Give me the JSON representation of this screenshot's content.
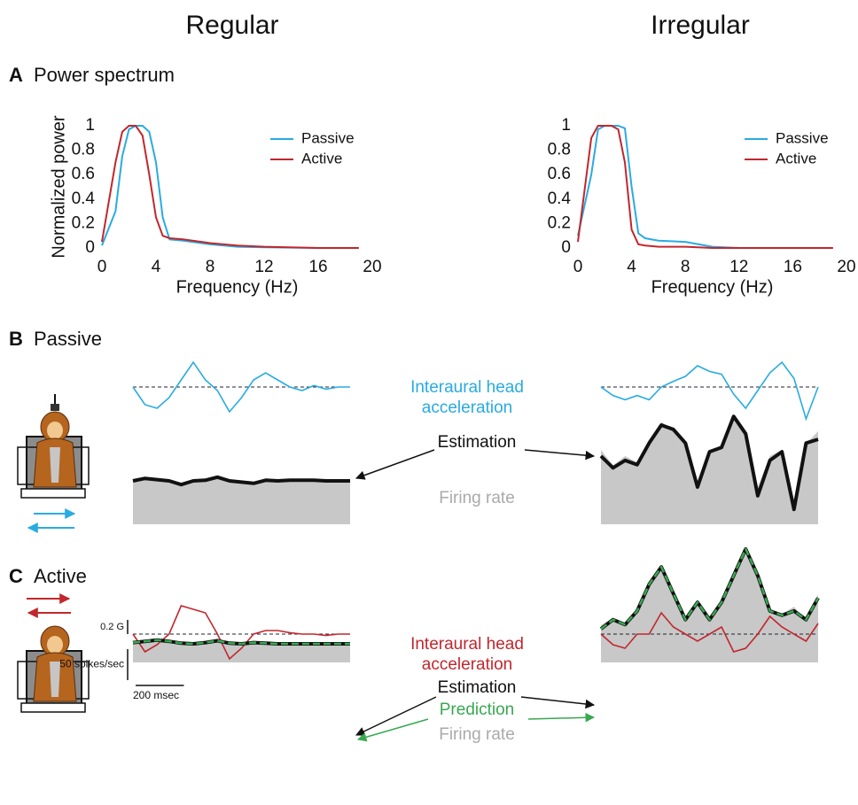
{
  "column_titles": [
    "Regular",
    "Irregular"
  ],
  "panels": [
    {
      "letter": "A",
      "title": "Power spectrum"
    },
    {
      "letter": "B",
      "title": "Passive"
    },
    {
      "letter": "C",
      "title": "Active"
    }
  ],
  "chart_data": [
    {
      "type": "line",
      "ylabel": "Normalized power",
      "xlabel": "Frequency (Hz)",
      "x": [
        0,
        1,
        1.5,
        2,
        2.5,
        3,
        3.5,
        4,
        4.5,
        5,
        6,
        8,
        10,
        12,
        16,
        19
      ],
      "series": [
        {
          "name": "Passive",
          "color": "#29abe2",
          "values": [
            0.02,
            0.3,
            0.75,
            0.97,
            1,
            1,
            0.95,
            0.7,
            0.25,
            0.07,
            0.06,
            0.03,
            0.01,
            0.005,
            0,
            0
          ]
        },
        {
          "name": "Active",
          "color": "#c1272d",
          "values": [
            0.05,
            0.7,
            0.95,
            1,
            1,
            0.92,
            0.6,
            0.25,
            0.1,
            0.08,
            0.07,
            0.04,
            0.02,
            0.01,
            0,
            0
          ]
        }
      ],
      "xlim": [
        0,
        20
      ],
      "ylim": [
        0,
        1
      ],
      "xticks": [
        0,
        4,
        8,
        12,
        16,
        20
      ],
      "yticks": [
        0,
        0.2,
        0.4,
        0.6,
        0.8,
        1
      ],
      "legend": "upper right"
    },
    {
      "type": "line",
      "xlabel": "Frequency (Hz)",
      "x": [
        0,
        1,
        1.5,
        2,
        2.5,
        3,
        3.5,
        4,
        4.5,
        5,
        6,
        8,
        10,
        12,
        16,
        19
      ],
      "series": [
        {
          "name": "Passive",
          "color": "#29abe2",
          "values": [
            0.1,
            0.6,
            0.97,
            1,
            1,
            1,
            0.98,
            0.5,
            0.12,
            0.08,
            0.06,
            0.05,
            0.01,
            0,
            0,
            0
          ]
        },
        {
          "name": "Active",
          "color": "#c1272d",
          "values": [
            0.05,
            0.9,
            1,
            1,
            1,
            0.97,
            0.7,
            0.15,
            0.03,
            0.02,
            0.01,
            0.01,
            0,
            0,
            0,
            0
          ]
        }
      ],
      "xlim": [
        0,
        20
      ],
      "ylim": [
        0,
        1
      ],
      "xticks": [
        0,
        4,
        8,
        12,
        16,
        20
      ],
      "yticks": [
        0,
        0.2,
        0.4,
        0.6,
        0.8,
        1
      ],
      "legend": "upper right"
    },
    {
      "type": "trace",
      "x": [
        0,
        50,
        100,
        150,
        200,
        250,
        300,
        350,
        400,
        450,
        500,
        550,
        600,
        650,
        700,
        750,
        800,
        850,
        900
      ],
      "series": [
        {
          "name": "Interaural head acceleration",
          "color": "#29abe2",
          "values": [
            0,
            -0.25,
            -0.3,
            -0.15,
            0.1,
            0.35,
            0.1,
            -0.05,
            -0.35,
            -0.15,
            0.1,
            0.2,
            0.1,
            0,
            -0.05,
            0.02,
            -0.03,
            0,
            0
          ]
        },
        {
          "name": "Firing rate",
          "color": "#c8c8c8",
          "values": [
            70,
            74,
            72,
            70,
            64,
            70,
            71,
            76,
            70,
            68,
            66,
            71,
            70,
            71,
            71,
            71,
            70,
            70,
            70
          ]
        },
        {
          "name": "Estimation",
          "color": "#111111",
          "values": [
            70,
            74,
            72,
            70,
            64,
            70,
            71,
            76,
            70,
            68,
            66,
            71,
            70,
            71,
            71,
            71,
            70,
            70,
            70
          ]
        }
      ]
    },
    {
      "type": "trace",
      "x": [
        0,
        50,
        100,
        150,
        200,
        250,
        300,
        350,
        400,
        450,
        500,
        550,
        600,
        650,
        700,
        750,
        800,
        850,
        900
      ],
      "series": [
        {
          "color": "#29abe2",
          "values": [
            0,
            -0.12,
            -0.18,
            -0.12,
            -0.18,
            0,
            0.08,
            0.15,
            0.3,
            0.22,
            0.18,
            -0.1,
            -0.3,
            -0.05,
            0.2,
            0.35,
            0.12,
            -0.45,
            0
          ]
        },
        {
          "color": "#c8c8c8",
          "values": [
            120,
            95,
            110,
            100,
            130,
            165,
            150,
            135,
            70,
            120,
            125,
            170,
            150,
            60,
            110,
            120,
            40,
            130,
            150
          ]
        },
        {
          "color": "#111111",
          "values": [
            110,
            91,
            103,
            96,
            131,
            160,
            153,
            131,
            60,
            117,
            124,
            174,
            146,
            46,
            103,
            117,
            24,
            131,
            137
          ]
        }
      ]
    },
    {
      "type": "trace",
      "x": [
        0,
        50,
        100,
        150,
        200,
        250,
        300,
        350,
        400,
        450,
        500,
        550,
        600,
        650,
        700,
        750,
        800,
        850,
        900
      ],
      "acceleration_scale": "0.2 G",
      "rate_scale": "50 spikes/sec",
      "time_scale": "200 msec",
      "series": [
        {
          "name": "Interaural head acceleration",
          "color": "#c1272d",
          "values": [
            0,
            -0.25,
            -0.15,
            0,
            0.4,
            0.35,
            0.3,
            0,
            -0.35,
            -0.2,
            0,
            0.05,
            0.05,
            0.02,
            0,
            0,
            -0.02,
            0,
            0
          ]
        },
        {
          "name": "Firing rate",
          "color": "#c8c8c8",
          "values": [
            32,
            34,
            36,
            34,
            31,
            30,
            32,
            35,
            31,
            30,
            32,
            31,
            30,
            30,
            30,
            30,
            30,
            30,
            30
          ]
        },
        {
          "name": "Estimation",
          "color": "#111111",
          "values": [
            32,
            34,
            36,
            34,
            31,
            30,
            32,
            35,
            31,
            30,
            32,
            31,
            30,
            30,
            30,
            30,
            30,
            30,
            30
          ]
        },
        {
          "name": "Prediction",
          "color": "#39a851",
          "values": [
            32,
            34,
            36,
            34,
            31,
            30,
            32,
            35,
            31,
            30,
            32,
            31,
            30,
            30,
            30,
            30,
            30,
            30,
            30
          ]
        }
      ]
    },
    {
      "type": "trace",
      "x": [
        0,
        50,
        100,
        150,
        200,
        250,
        300,
        350,
        400,
        450,
        500,
        550,
        600,
        650,
        700,
        750,
        800,
        850,
        900
      ],
      "series": [
        {
          "color": "#c1272d",
          "values": [
            0,
            -0.15,
            -0.2,
            0,
            0,
            0.3,
            0.1,
            0,
            -0.1,
            0,
            0.1,
            -0.25,
            -0.2,
            0,
            0.25,
            0.1,
            0,
            -0.1,
            0.15
          ]
        },
        {
          "color": "#c8c8c8",
          "values": [
            60,
            72,
            58,
            85,
            125,
            150,
            115,
            65,
            100,
            72,
            95,
            145,
            180,
            135,
            85,
            78,
            90,
            66,
            110
          ]
        },
        {
          "color": "#111111",
          "values": [
            54,
            69,
            61,
            83,
            126,
            154,
            111,
            69,
            97,
            69,
            97,
            140,
            183,
            140,
            83,
            76,
            83,
            69,
            104
          ]
        },
        {
          "color": "#39a851",
          "values": [
            54,
            69,
            61,
            83,
            126,
            154,
            111,
            69,
            97,
            69,
            97,
            140,
            183,
            140,
            83,
            76,
            83,
            69,
            104
          ]
        }
      ]
    }
  ]
}
